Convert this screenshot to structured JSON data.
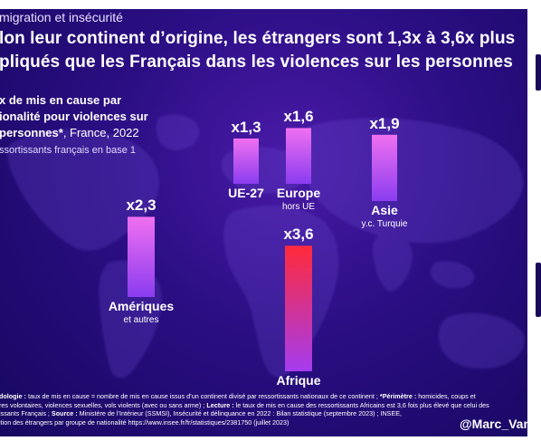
{
  "header": {
    "kicker": "migration et insécurité",
    "title_line1": "lon leur continent d’origine, les étrangers sont 1,3x à 3,6x plus",
    "title_line2": "pliqués que les Français dans les violences sur les personnes"
  },
  "subtitle": {
    "line1": "x de mis en cause par",
    "line2": "ionalité pour violences sur",
    "line3_bold": "personnes*",
    "line3_rest": ", France, 2022",
    "line4": "ssortissants français en base 1"
  },
  "chart_data": {
    "type": "bar",
    "title": "",
    "categories": [
      "UE-27",
      "Europe",
      "Asie",
      "Amériques",
      "Afrique"
    ],
    "category_sublabels": [
      "",
      "hors UE",
      "y.c. Turquie",
      "et autres",
      ""
    ],
    "value_labels": [
      "x1,3",
      "x1,6",
      "x1,9",
      "x2,3",
      "x3,6"
    ],
    "values": [
      1.3,
      1.6,
      1.9,
      2.3,
      3.6
    ],
    "colors": {
      "bar_top": "#f070f0",
      "bar_bottom": "#8a3cf0",
      "afrique_top": "#ff2a3a",
      "afrique_bottom": "#a43cf0"
    },
    "xlabel": "",
    "ylabel": ""
  },
  "footer": {
    "line1_label": "dologie :",
    "line1_text": " taux de mis en cause = nombre de mis en cause issus d’un continent divisé par ressortissants nationaux de ce continent ; ",
    "line1_label2": "*Périmètre :",
    "line1_text2": " homicides, coups et",
    "line2": "res volontaires, violences sexuelles, vols violents (avec ou sans arme) ; ",
    "line2_label": "Lecture :",
    "line2_text": " le taux de mis en cause des ressortissants Africains est 3,6 fois plus élevé que celui des",
    "line3": "issants Français ; ",
    "line3_label": "Source :",
    "line3_text": " Ministère de l’Intérieur (SSMSI), Insécurité et délinquance en 2022 : Bilan statistique (septembre 2023) ; INSEE,",
    "line4": "ition des étrangers par groupe de nationalité https://www.insee.fr/fr/statistiques/2381750 (juillet 2023)"
  },
  "handle": "@Marc_Vang"
}
